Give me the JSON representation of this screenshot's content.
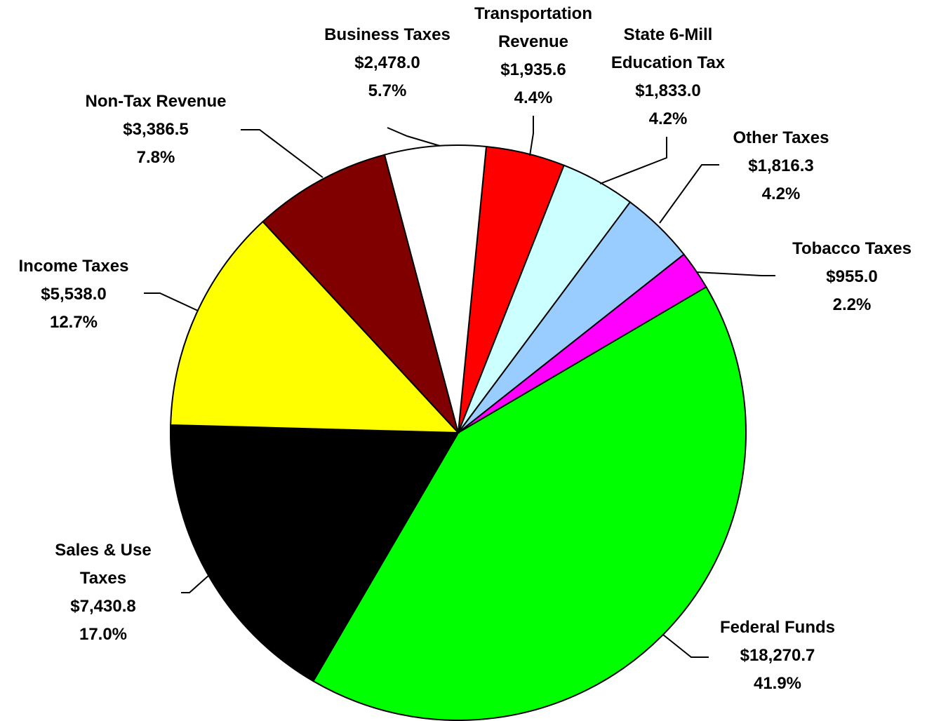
{
  "chart_data": {
    "type": "pie",
    "categories": [
      "Transportation\nRevenue",
      "State 6-Mill\nEducation Tax",
      "Other Taxes",
      "Tobacco Taxes",
      "Federal Funds",
      "Sales & Use\nTaxes",
      "Income Taxes",
      "Non-Tax Revenue",
      "Business Taxes"
    ],
    "values": [
      1935.6,
      1833.0,
      1816.3,
      955.0,
      18270.7,
      7430.8,
      5538.0,
      3386.5,
      2478.0
    ],
    "value_labels": [
      "$1,935.6",
      "$1,833.0",
      "$1,816.3",
      "$955.0",
      "$18,270.7",
      "$7,430.8",
      "$5,538.0",
      "$3,386.5",
      "$2,478.0"
    ],
    "percent_labels": [
      "4.4%",
      "4.2%",
      "4.2%",
      "2.2%",
      "41.9%",
      "17.0%",
      "12.7%",
      "7.8%",
      "5.7%"
    ],
    "colors": [
      "#ff0000",
      "#ccffff",
      "#99ccff",
      "#ff00ff",
      "#00ff00",
      "#000000",
      "#ffff00",
      "#800000",
      "#ffffff"
    ]
  }
}
